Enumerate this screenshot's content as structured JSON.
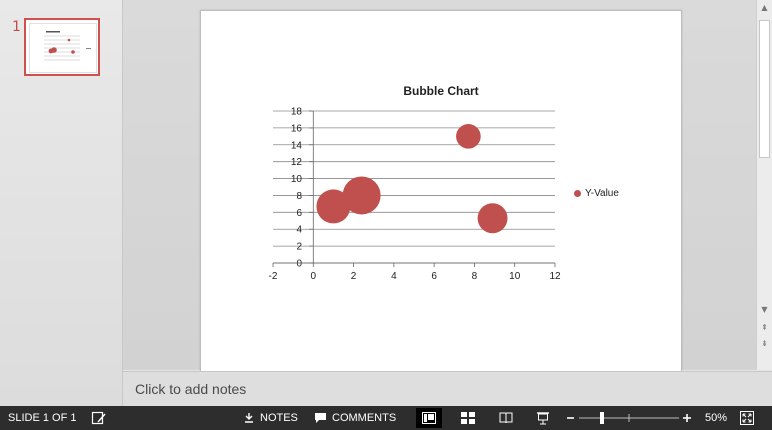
{
  "thumbnails": {
    "slide_number": "1"
  },
  "slide": {
    "chart_data": {
      "type": "scatter",
      "title": "Bubble Chart",
      "xlim": [
        -2,
        12
      ],
      "ylim": [
        0,
        18
      ],
      "x_ticks": [
        "-2",
        "0",
        "2",
        "4",
        "6",
        "8",
        "10",
        "12"
      ],
      "y_ticks": [
        "0",
        "2",
        "4",
        "6",
        "8",
        "10",
        "12",
        "14",
        "16",
        "18"
      ],
      "grid": true,
      "legend_position": "right",
      "series": [
        {
          "name": "Y-Value",
          "color": "#c0504d",
          "points": [
            {
              "x": 1.0,
              "y": 6.7,
              "size": 4.0
            },
            {
              "x": 2.4,
              "y": 8.0,
              "size": 5.0
            },
            {
              "x": 7.7,
              "y": 15.0,
              "size": 2.1
            },
            {
              "x": 8.9,
              "y": 5.3,
              "size": 3.1
            }
          ]
        }
      ]
    }
  },
  "notes": {
    "placeholder": "Click to add notes"
  },
  "statusbar": {
    "slide_info": "SLIDE 1 OF 1",
    "notes_label": "NOTES",
    "comments_label": "COMMENTS",
    "zoom": "50%"
  },
  "colors": {
    "accent": "#c0504d",
    "statusbar": "#2d2d2d"
  }
}
